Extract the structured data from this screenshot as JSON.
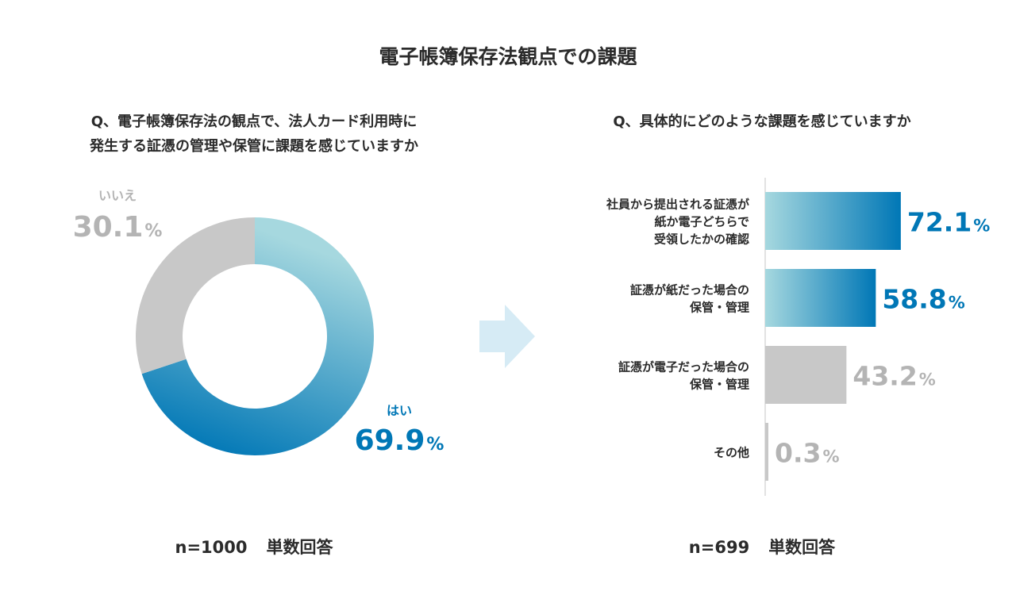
{
  "title": "電子帳簿保存法観点での課題",
  "left": {
    "question_line1": "Q、電子帳簿保存法の観点で、法人カード利用時に",
    "question_line2": "発生する証憑の管理や保管に課題を感じていますか",
    "sample": "n=1000",
    "answer_type": "単数回答"
  },
  "right": {
    "question": "Q、具体的にどのような課題を感じていますか",
    "sample": "n=699",
    "answer_type": "単数回答"
  },
  "colors": {
    "accent": "#0077b6",
    "accent_light": "#a6d8df",
    "gray": "#c8c8c8",
    "gray_text": "#b4b4b4",
    "arrow": "#d6ebf5"
  },
  "chart_data": [
    {
      "type": "pie",
      "style": "donut",
      "labels": [
        "はい",
        "いいえ"
      ],
      "values": [
        69.9,
        30.1
      ],
      "unit": "%"
    },
    {
      "type": "bar",
      "orientation": "horizontal",
      "categories": [
        [
          "社員から提出される証憑が",
          "紙か電子どちらで",
          "受領したかの確認"
        ],
        [
          "証憑が紙だった場合の",
          "保管・管理"
        ],
        [
          "証憑が電子だった場合の",
          "保管・管理"
        ],
        [
          "その他"
        ]
      ],
      "values": [
        72.1,
        58.8,
        43.2,
        0.3
      ],
      "highlight": [
        true,
        true,
        false,
        false
      ],
      "unit": "%",
      "xlim": [
        0,
        100
      ]
    }
  ]
}
